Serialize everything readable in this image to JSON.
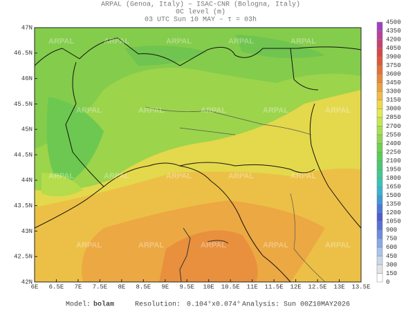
{
  "header": {
    "line1": "ARPAL (Genoa, Italy)  –  ISAC-CNR (Bologna, Italy)",
    "line2": "0C level (m)",
    "line3": "03 UTC Sun 10 MAY  –  τ = 03h"
  },
  "map": {
    "lat_labels": [
      "47N",
      "46.5N",
      "46N",
      "45.5N",
      "45N",
      "44.5N",
      "44N",
      "43.5N",
      "43N",
      "42.5N",
      "42N"
    ],
    "lon_labels": [
      "6E",
      "6.5E",
      "7E",
      "7.5E",
      "8E",
      "8.5E",
      "9E",
      "9.5E",
      "10E",
      "10.5E",
      "11E",
      "11.5E",
      "12E",
      "12.5E",
      "13E",
      "13.5E"
    ],
    "watermark": "ARPAL"
  },
  "colorbar": {
    "levels": [
      0,
      150,
      300,
      450,
      600,
      750,
      900,
      1050,
      1200,
      1350,
      1500,
      1650,
      1800,
      1950,
      2100,
      2250,
      2400,
      2550,
      2700,
      2850,
      3000,
      3150,
      3300,
      3450,
      3600,
      3750,
      3900,
      4050,
      4200,
      4350,
      4500
    ],
    "colors": [
      "#ffffff",
      "#e4e4e4",
      "#c8d8ec",
      "#a8c4ec",
      "#88a8e8",
      "#6c8ce0",
      "#5870d8",
      "#4c5cd0",
      "#4878d8",
      "#4098d8",
      "#38b4d0",
      "#38c4b0",
      "#40c890",
      "#48c870",
      "#58cc58",
      "#70d050",
      "#8cd850",
      "#a8e050",
      "#c4e850",
      "#e0ec50",
      "#f0d848",
      "#f0bc44",
      "#eca040",
      "#e8883c",
      "#e47038",
      "#dc5838",
      "#d44848",
      "#c84070",
      "#b8409c",
      "#a040c0"
    ]
  },
  "footer": {
    "model_label": "Model:",
    "model": "bolam",
    "resolution_label": "Resolution:",
    "resolution": "0.104°x0.074°",
    "analysis_label": "Analysis:",
    "analysis": "Sun 00Z10MAY2026"
  }
}
